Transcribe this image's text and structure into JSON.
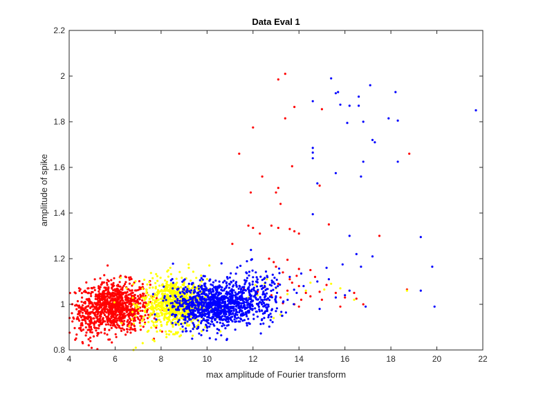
{
  "chart_data": {
    "type": "scatter",
    "title": "Data Eval 1",
    "xlabel": "max amplitude of Fourier transform",
    "ylabel": "amplitude of spike",
    "xlim": [
      4,
      22
    ],
    "ylim": [
      0.8,
      2.2
    ],
    "xticks": [
      "4",
      "6",
      "8",
      "10",
      "12",
      "14",
      "16",
      "18",
      "20",
      "22"
    ],
    "yticks": [
      "0.8",
      "1",
      "1.2",
      "1.4",
      "1.6",
      "1.8",
      "2",
      "2.2"
    ],
    "grid": false,
    "legend": "none",
    "series": [
      {
        "color": "#ff0000",
        "clusters": [
          {
            "cx": 6.0,
            "cy": 0.99,
            "sx": 0.75,
            "sy": 0.055,
            "n": 900
          },
          {
            "cx": 4.8,
            "cy": 0.94,
            "sx": 0.35,
            "sy": 0.05,
            "n": 120
          }
        ],
        "points": [
          [
            13.4,
            2.01
          ],
          [
            13.1,
            1.985
          ],
          [
            12.0,
            1.775
          ],
          [
            13.8,
            1.865
          ],
          [
            15.0,
            1.855
          ],
          [
            13.4,
            1.815
          ],
          [
            11.4,
            1.66
          ],
          [
            18.8,
            1.66
          ],
          [
            13.7,
            1.605
          ],
          [
            12.4,
            1.56
          ],
          [
            14.9,
            1.52
          ],
          [
            13.1,
            1.51
          ],
          [
            13.0,
            1.49
          ],
          [
            11.9,
            1.49
          ],
          [
            13.2,
            1.44
          ],
          [
            15.3,
            1.35
          ],
          [
            12.8,
            1.345
          ],
          [
            11.8,
            1.345
          ],
          [
            12.0,
            1.335
          ],
          [
            13.1,
            1.335
          ],
          [
            13.6,
            1.33
          ],
          [
            13.8,
            1.32
          ],
          [
            14.0,
            1.31
          ],
          [
            17.5,
            1.3
          ],
          [
            12.3,
            1.31
          ],
          [
            11.1,
            1.265
          ],
          [
            12.7,
            1.2
          ],
          [
            13.5,
            1.195
          ],
          [
            12.9,
            1.185
          ],
          [
            13.0,
            1.165
          ],
          [
            14.0,
            1.155
          ],
          [
            14.5,
            1.15
          ],
          [
            13.3,
            1.14
          ],
          [
            13.9,
            1.125
          ],
          [
            13.6,
            1.11
          ],
          [
            14.7,
            1.12
          ],
          [
            13.1,
            1.09
          ],
          [
            12.5,
            1.075
          ],
          [
            14.0,
            1.08
          ],
          [
            15.2,
            1.085
          ],
          [
            13.5,
            1.06
          ],
          [
            14.3,
            1.05
          ],
          [
            14.9,
            1.055
          ],
          [
            12.8,
            1.04
          ],
          [
            13.2,
            1.03
          ],
          [
            14.1,
            1.02
          ],
          [
            15.6,
            1.05
          ],
          [
            16.4,
            1.05
          ],
          [
            14.5,
            1.035
          ],
          [
            16.0,
            1.03
          ],
          [
            13.3,
            1.005
          ],
          [
            14.0,
            0.99
          ],
          [
            15.0,
            1.02
          ],
          [
            16.5,
            1.025
          ],
          [
            12.6,
            1.02
          ],
          [
            13.8,
            1.0
          ],
          [
            18.7,
            1.065
          ],
          [
            11.6,
            1.07
          ],
          [
            12.2,
            1.055
          ],
          [
            13.7,
            1.095
          ],
          [
            16.8,
            1.0
          ],
          [
            15.8,
            0.99
          ]
        ]
      },
      {
        "color": "#ffff00",
        "clusters": [
          {
            "cx": 8.6,
            "cy": 1.0,
            "sx": 0.7,
            "sy": 0.055,
            "n": 800
          }
        ],
        "points": [
          [
            9.2,
            1.175
          ],
          [
            8.4,
            1.16
          ],
          [
            10.1,
            1.17
          ],
          [
            7.2,
            0.83
          ],
          [
            6.9,
            0.81
          ],
          [
            6.8,
            0.8
          ],
          [
            12.1,
            1.085
          ],
          [
            12.5,
            1.09
          ],
          [
            13.0,
            1.07
          ],
          [
            14.3,
            1.06
          ],
          [
            15.1,
            1.065
          ],
          [
            15.8,
            1.07
          ],
          [
            16.4,
            1.02
          ],
          [
            18.7,
            1.06
          ],
          [
            13.5,
            1.045
          ],
          [
            12.2,
            1.04
          ],
          [
            11.8,
            1.03
          ],
          [
            12.6,
            1.11
          ],
          [
            14.5,
            1.095
          ],
          [
            13.2,
            0.955
          ],
          [
            12.9,
            0.94
          ],
          [
            15.4,
            1.09
          ]
        ]
      },
      {
        "color": "#0000ff",
        "clusters": [
          {
            "cx": 10.3,
            "cy": 1.0,
            "sx": 0.9,
            "sy": 0.05,
            "n": 1000
          },
          {
            "cx": 12.2,
            "cy": 1.04,
            "sx": 0.7,
            "sy": 0.06,
            "n": 200
          }
        ],
        "points": [
          [
            15.4,
            1.99
          ],
          [
            17.1,
            1.96
          ],
          [
            15.7,
            1.93
          ],
          [
            18.2,
            1.93
          ],
          [
            15.6,
            1.925
          ],
          [
            16.6,
            1.91
          ],
          [
            14.6,
            1.89
          ],
          [
            15.8,
            1.875
          ],
          [
            16.2,
            1.87
          ],
          [
            16.6,
            1.87
          ],
          [
            21.7,
            1.85
          ],
          [
            17.9,
            1.815
          ],
          [
            18.3,
            1.805
          ],
          [
            16.1,
            1.795
          ],
          [
            16.8,
            1.8
          ],
          [
            17.2,
            1.72
          ],
          [
            17.3,
            1.71
          ],
          [
            14.6,
            1.685
          ],
          [
            14.6,
            1.665
          ],
          [
            14.6,
            1.64
          ],
          [
            16.8,
            1.625
          ],
          [
            18.3,
            1.625
          ],
          [
            15.6,
            1.575
          ],
          [
            16.7,
            1.56
          ],
          [
            14.8,
            1.53
          ],
          [
            14.6,
            1.395
          ],
          [
            16.2,
            1.3
          ],
          [
            19.3,
            1.295
          ],
          [
            16.5,
            1.22
          ],
          [
            15.9,
            1.175
          ],
          [
            16.7,
            1.165
          ],
          [
            19.8,
            1.165
          ],
          [
            17.2,
            1.21
          ],
          [
            15.2,
            1.16
          ],
          [
            14.1,
            1.135
          ],
          [
            13.6,
            1.12
          ],
          [
            15.3,
            1.11
          ],
          [
            14.2,
            1.08
          ],
          [
            16.0,
            1.04
          ],
          [
            16.9,
            0.99
          ],
          [
            19.3,
            1.06
          ],
          [
            19.9,
            0.99
          ],
          [
            14.9,
            0.98
          ],
          [
            15.6,
            1.03
          ],
          [
            13.9,
            1.05
          ],
          [
            14.8,
            1.1
          ],
          [
            16.2,
            1.06
          ]
        ]
      }
    ]
  }
}
